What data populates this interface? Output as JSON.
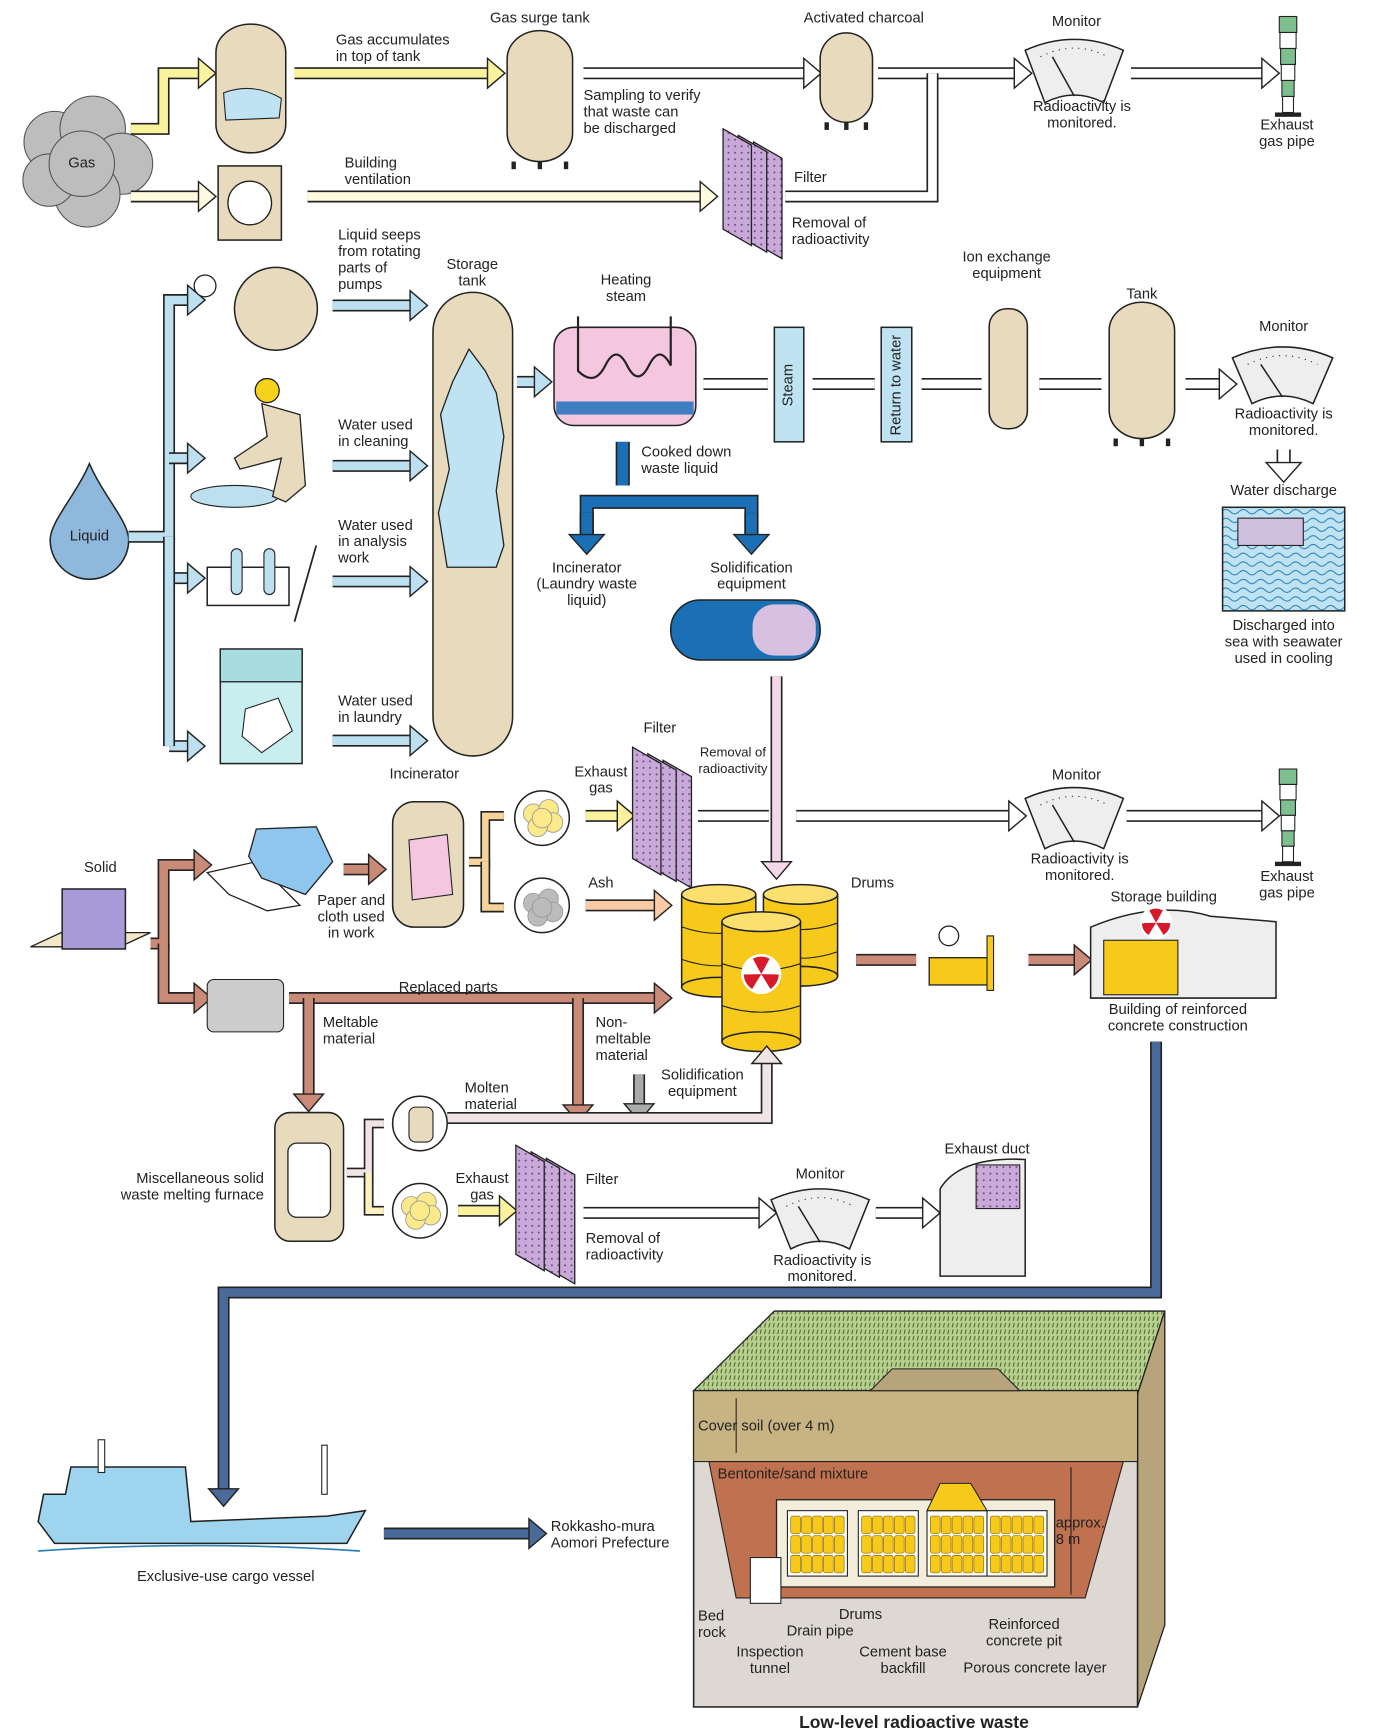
{
  "gas": {
    "source": "Gas",
    "accumulates": [
      "Gas accumulates",
      "in top of tank"
    ],
    "surge_tank": "Gas surge tank",
    "charcoal": "Activated charcoal",
    "monitor": "Monitor",
    "sampling": [
      "Sampling to verify",
      "that waste can",
      "be discharged"
    ],
    "monitored": [
      "Radioactivity is",
      "monitored."
    ],
    "exhaust_pipe": [
      "Exhaust",
      "gas pipe"
    ],
    "ventilation": [
      "Building",
      "ventilation"
    ],
    "filter": "Filter",
    "removal": [
      "Removal of",
      "radioactivity"
    ]
  },
  "liquid": {
    "source": "Liquid",
    "seeps": [
      "Liquid seeps",
      "from rotating",
      "parts of",
      "pumps"
    ],
    "storage_tank": [
      "Storage",
      "tank"
    ],
    "heating_steam": [
      "Heating",
      "steam"
    ],
    "ion_exchange": [
      "Ion exchange",
      "equipment"
    ],
    "tank": "Tank",
    "monitor": "Monitor",
    "steam": "Steam",
    "return_to_water": "Return to water",
    "monitored": [
      "Radioactivity is",
      "monitored."
    ],
    "water_discharge": "Water discharge",
    "discharged": [
      "Discharged into",
      "sea with seawater",
      "used in cooling"
    ],
    "cleaning": [
      "Water used",
      "in cleaning"
    ],
    "cooked_down": [
      "Cooked down",
      "waste liquid"
    ],
    "analysis": [
      "Water used",
      "in analysis",
      "work"
    ],
    "incinerator": [
      "Incinerator",
      "(Laundry waste",
      "liquid)"
    ],
    "solidification": [
      "Solidification",
      "equipment"
    ],
    "laundry": [
      "Water used",
      "in laundry"
    ]
  },
  "solid": {
    "source": "Solid",
    "filter": "Filter",
    "removal": [
      "Removal of",
      "radioactivity"
    ],
    "incinerator": "Incinerator",
    "monitor": "Monitor",
    "exhaust_gas": [
      "Exhaust",
      "gas"
    ],
    "monitored": [
      "Radioactivity is",
      "monitored."
    ],
    "exhaust_pipe": [
      "Exhaust",
      "gas pipe"
    ],
    "ash": "Ash",
    "drums": "Drums",
    "storage_building": "Storage building",
    "paper_cloth": [
      "Paper and",
      "cloth used",
      "in work"
    ],
    "replaced_parts": "Replaced parts",
    "building": [
      "Building of reinforced",
      "concrete construction"
    ],
    "meltable": [
      "Meltable",
      "material"
    ],
    "non_meltable": [
      "Non-",
      "meltable",
      "material"
    ],
    "solidification": [
      "Solidification",
      "equipment"
    ],
    "molten": [
      "Molten",
      "material"
    ],
    "exhaust_duct": "Exhaust duct",
    "furnace_monitor": "Monitor",
    "furnace": [
      "Miscellaneous solid",
      "waste melting furnace"
    ],
    "furnace_exhaust_gas": [
      "Exhaust",
      "gas"
    ],
    "furnace_filter": "Filter",
    "furnace_removal": [
      "Removal of",
      "radioactivity"
    ],
    "furnace_monitored": [
      "Radioactivity is",
      "monitored."
    ]
  },
  "disposal": {
    "cover_soil": "Cover soil (over 4 m)",
    "bentonite": "Bentonite/sand mixture",
    "depth": [
      "approx.",
      "8 m"
    ],
    "destination": [
      "Rokkasho-mura",
      "Aomori Prefecture"
    ],
    "vessel": "Exclusive-use cargo vessel",
    "bed_rock": [
      "Bed",
      "rock"
    ],
    "drums": "Drums",
    "pit": [
      "Reinforced",
      "concrete pit"
    ],
    "drain_pipe": "Drain pipe",
    "tunnel": [
      "Inspection",
      "tunnel"
    ],
    "backfill": [
      "Cement base",
      "backfill"
    ],
    "porous": "Porous concrete layer",
    "title": "Low-level radioactive waste"
  }
}
